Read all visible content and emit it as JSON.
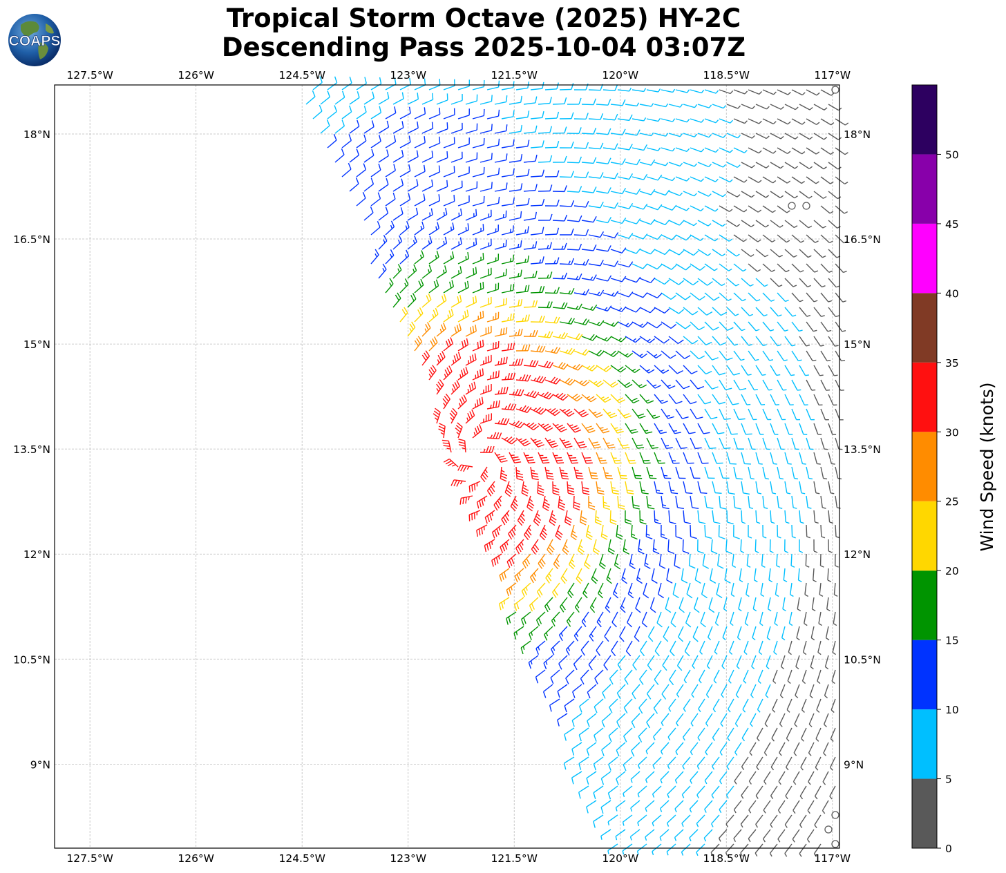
{
  "title": {
    "line1": "Tropical Storm Octave (2025) HY-2C",
    "line2": "Descending Pass 2025-10-04 03:07Z"
  },
  "logo": {
    "text": "COAPS",
    "icon": "globe-logo"
  },
  "map": {
    "lon_range": [
      -128.0,
      -116.9
    ],
    "lat_range": [
      7.8,
      18.7
    ],
    "lon_ticks": [
      {
        "value": -127.5,
        "label": "127.5°W"
      },
      {
        "value": -126.0,
        "label": "126°W"
      },
      {
        "value": -124.5,
        "label": "124.5°W"
      },
      {
        "value": -123.0,
        "label": "123°W"
      },
      {
        "value": -121.5,
        "label": "121.5°W"
      },
      {
        "value": -120.0,
        "label": "120°W"
      },
      {
        "value": -118.5,
        "label": "118.5°W"
      },
      {
        "value": -117.0,
        "label": "117°W"
      }
    ],
    "lat_ticks": [
      {
        "value": 18.0,
        "label": "18°N"
      },
      {
        "value": 16.5,
        "label": "16.5°N"
      },
      {
        "value": 15.0,
        "label": "15°N"
      },
      {
        "value": 13.5,
        "label": "13.5°N"
      },
      {
        "value": 12.0,
        "label": "12°N"
      },
      {
        "value": 10.5,
        "label": "10.5°N"
      },
      {
        "value": 9.0,
        "label": "9°N"
      }
    ],
    "gridlines": true,
    "storm_center": {
      "lon": -122.0,
      "lat": 13.4
    },
    "swath_note": "descending pass swath covering the eastern portion of the map"
  },
  "colorbar": {
    "label": "Wind Speed (knots)",
    "ticks": [
      "0",
      "5",
      "10",
      "15",
      "20",
      "25",
      "30",
      "35",
      "40",
      "45",
      "50"
    ],
    "bins": [
      {
        "min": 0,
        "max": 5,
        "color": "#595959"
      },
      {
        "min": 5,
        "max": 10,
        "color": "#00bfff"
      },
      {
        "min": 10,
        "max": 15,
        "color": "#0033ff"
      },
      {
        "min": 15,
        "max": 20,
        "color": "#009400"
      },
      {
        "min": 20,
        "max": 25,
        "color": "#ffd700"
      },
      {
        "min": 25,
        "max": 30,
        "color": "#ff8c00"
      },
      {
        "min": 30,
        "max": 35,
        "color": "#ff1010"
      },
      {
        "min": 35,
        "max": 40,
        "color": "#803a25"
      },
      {
        "min": 40,
        "max": 45,
        "color": "#ff00ff"
      },
      {
        "min": 45,
        "max": 50,
        "color": "#8800aa"
      },
      {
        "min": 50,
        "max": 55,
        "color": "#2d0060"
      }
    ]
  }
}
